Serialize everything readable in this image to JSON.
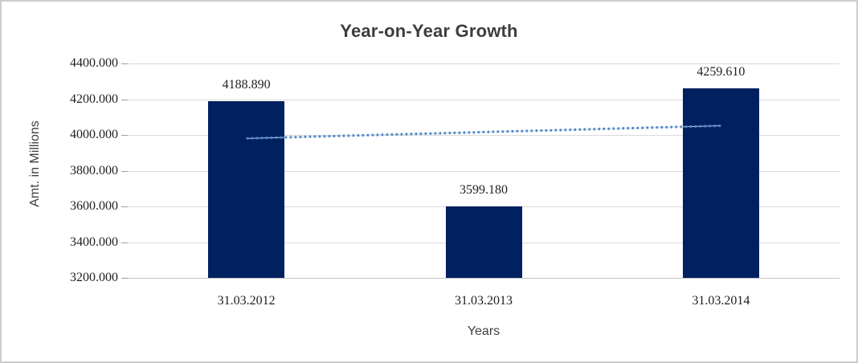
{
  "window": {
    "background": "#ffffff",
    "border_color": "#cdcdcd"
  },
  "chart_data": {
    "type": "bar",
    "title": "Year-on-Year Growth",
    "xlabel": "Years",
    "ylabel": "Amt. in Millions",
    "categories": [
      "31.03.2012",
      "31.03.2013",
      "31.03.2014"
    ],
    "values": [
      4188.89,
      3599.18,
      4259.61
    ],
    "value_labels": [
      "4188.890",
      "3599.180",
      "4259.610"
    ],
    "ylim": [
      3200,
      4400
    ],
    "ytick_step": 200,
    "ytick_labels": [
      "3200.000",
      "3400.000",
      "3600.000",
      "3800.000",
      "4000.000",
      "4200.000",
      "4400.000"
    ],
    "grid": true,
    "legend": "none",
    "bar_color": "#002060",
    "gridline_color": "#d9d9d9",
    "trendline": {
      "type": "linear",
      "style": "dotted",
      "color": "#4e87c5",
      "faint_line_color": "#c9d7ea",
      "start_value": 3980.5,
      "end_value": 4051.3
    }
  }
}
